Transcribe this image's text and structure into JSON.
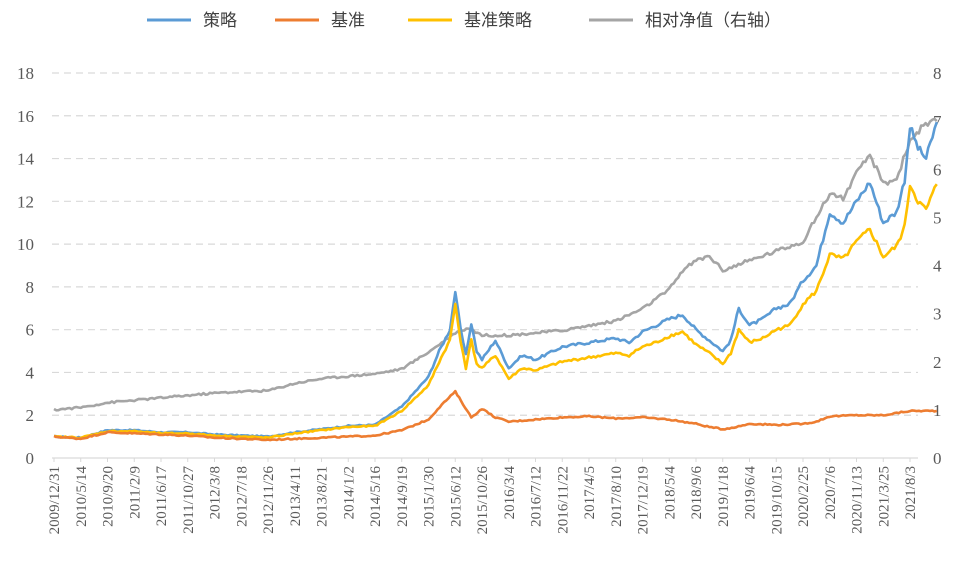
{
  "chart_data": {
    "type": "line",
    "legend": {
      "position": "top"
    },
    "grid": {
      "horizontal": true,
      "style": "dashed",
      "color": "#d9d9d9"
    },
    "x_tick_labels": [
      "2009/12/31",
      "2010/5/14",
      "2010/9/20",
      "2011/2/9",
      "2011/6/17",
      "2011/10/27",
      "2012/3/8",
      "2012/7/18",
      "2012/11/26",
      "2013/4/11",
      "2013/8/21",
      "2014/1/2",
      "2014/5/16",
      "2014/9/19",
      "2015/1/30",
      "2015/6/12",
      "2015/10/26",
      "2016/3/4",
      "2016/7/12",
      "2016/11/22",
      "2017/4/5",
      "2017/8/10",
      "2017/12/19",
      "2018/5/4",
      "2018/9/6",
      "2019/1/18",
      "2019/6/4",
      "2019/10/15",
      "2020/2/25",
      "2020/7/6",
      "2020/11/13",
      "2021/3/25",
      "2021/8/3"
    ],
    "y_left": {
      "min": 0,
      "max": 18,
      "step": 2,
      "ticks": [
        "0",
        "2",
        "4",
        "6",
        "8",
        "10",
        "12",
        "14",
        "16",
        "18"
      ]
    },
    "y_right": {
      "min": 0,
      "max": 8,
      "step": 1,
      "ticks": [
        "0",
        "1",
        "2",
        "3",
        "4",
        "5",
        "6",
        "7",
        "8"
      ]
    },
    "series": [
      {
        "name": "策略",
        "axis": "left",
        "color": "#5b9bd5",
        "points": [
          [
            0,
            1.0
          ],
          [
            1,
            0.95
          ],
          [
            2,
            1.3
          ],
          [
            3,
            1.3
          ],
          [
            4,
            1.2
          ],
          [
            5,
            1.2
          ],
          [
            6,
            1.1
          ],
          [
            7,
            1.05
          ],
          [
            8,
            1.0
          ],
          [
            9,
            1.2
          ],
          [
            10,
            1.35
          ],
          [
            11,
            1.5
          ],
          [
            12,
            1.55
          ],
          [
            13,
            2.4
          ],
          [
            14,
            3.8
          ],
          [
            14.4,
            5.0
          ],
          [
            14.8,
            6.0
          ],
          [
            15.0,
            7.8
          ],
          [
            15.2,
            6.0
          ],
          [
            15.4,
            4.8
          ],
          [
            15.6,
            6.3
          ],
          [
            15.8,
            5.0
          ],
          [
            16.0,
            4.6
          ],
          [
            16.5,
            5.5
          ],
          [
            17,
            4.2
          ],
          [
            17.5,
            4.8
          ],
          [
            18,
            4.6
          ],
          [
            19,
            5.2
          ],
          [
            20,
            5.4
          ],
          [
            21,
            5.6
          ],
          [
            21.5,
            5.4
          ],
          [
            22,
            5.9
          ],
          [
            22.5,
            6.2
          ],
          [
            23,
            6.5
          ],
          [
            23.5,
            6.7
          ],
          [
            24,
            6.0
          ],
          [
            24.5,
            5.5
          ],
          [
            25,
            5.0
          ],
          [
            25.3,
            5.5
          ],
          [
            25.6,
            7.0
          ],
          [
            26,
            6.2
          ],
          [
            26.5,
            6.5
          ],
          [
            27,
            7.0
          ],
          [
            27.5,
            7.2
          ],
          [
            28,
            8.3
          ],
          [
            28.5,
            9.0
          ],
          [
            29,
            11.5
          ],
          [
            29.5,
            11.0
          ],
          [
            30,
            12.0
          ],
          [
            30.5,
            12.9
          ],
          [
            31,
            11.0
          ],
          [
            31.5,
            11.5
          ],
          [
            31.8,
            13.0
          ],
          [
            32,
            15.5
          ],
          [
            32.3,
            14.5
          ],
          [
            32.6,
            14.0
          ],
          [
            33,
            15.7
          ]
        ]
      },
      {
        "name": "基准",
        "axis": "left",
        "color": "#ed7d31",
        "points": [
          [
            0,
            1.0
          ],
          [
            1,
            0.9
          ],
          [
            2,
            1.2
          ],
          [
            3,
            1.15
          ],
          [
            4,
            1.1
          ],
          [
            5,
            1.05
          ],
          [
            6,
            0.95
          ],
          [
            7,
            0.9
          ],
          [
            8,
            0.85
          ],
          [
            9,
            0.9
          ],
          [
            10,
            0.95
          ],
          [
            11,
            1.0
          ],
          [
            12,
            1.05
          ],
          [
            13,
            1.3
          ],
          [
            14,
            1.8
          ],
          [
            14.5,
            2.5
          ],
          [
            15.0,
            3.1
          ],
          [
            15.3,
            2.5
          ],
          [
            15.6,
            1.9
          ],
          [
            16.0,
            2.3
          ],
          [
            16.5,
            1.9
          ],
          [
            17,
            1.7
          ],
          [
            18,
            1.8
          ],
          [
            19,
            1.9
          ],
          [
            20,
            1.95
          ],
          [
            21,
            1.85
          ],
          [
            22,
            1.9
          ],
          [
            23,
            1.8
          ],
          [
            23.5,
            1.7
          ],
          [
            24,
            1.6
          ],
          [
            24.5,
            1.45
          ],
          [
            25,
            1.35
          ],
          [
            25.5,
            1.45
          ],
          [
            26,
            1.6
          ],
          [
            27,
            1.55
          ],
          [
            28,
            1.6
          ],
          [
            28.5,
            1.7
          ],
          [
            29,
            1.95
          ],
          [
            30,
            2.0
          ],
          [
            31,
            2.0
          ],
          [
            32,
            2.2
          ],
          [
            33,
            2.2
          ]
        ]
      },
      {
        "name": "基准策略",
        "axis": "left",
        "color": "#ffc000",
        "points": [
          [
            0,
            1.0
          ],
          [
            1,
            0.95
          ],
          [
            2,
            1.25
          ],
          [
            3,
            1.25
          ],
          [
            4,
            1.15
          ],
          [
            5,
            1.15
          ],
          [
            6,
            1.05
          ],
          [
            7,
            1.0
          ],
          [
            8,
            0.95
          ],
          [
            9,
            1.15
          ],
          [
            10,
            1.3
          ],
          [
            11,
            1.45
          ],
          [
            12,
            1.5
          ],
          [
            13,
            2.2
          ],
          [
            14,
            3.4
          ],
          [
            14.4,
            4.5
          ],
          [
            14.8,
            5.5
          ],
          [
            15.0,
            7.2
          ],
          [
            15.2,
            5.5
          ],
          [
            15.4,
            4.2
          ],
          [
            15.6,
            5.5
          ],
          [
            15.8,
            4.4
          ],
          [
            16.0,
            4.2
          ],
          [
            16.5,
            4.8
          ],
          [
            17,
            3.7
          ],
          [
            17.5,
            4.2
          ],
          [
            18,
            4.1
          ],
          [
            19,
            4.5
          ],
          [
            20,
            4.7
          ],
          [
            21,
            4.9
          ],
          [
            21.5,
            4.8
          ],
          [
            22,
            5.2
          ],
          [
            22.5,
            5.4
          ],
          [
            23,
            5.7
          ],
          [
            23.5,
            5.9
          ],
          [
            24,
            5.3
          ],
          [
            24.5,
            4.9
          ],
          [
            25,
            4.4
          ],
          [
            25.3,
            4.9
          ],
          [
            25.6,
            6.0
          ],
          [
            26,
            5.4
          ],
          [
            26.5,
            5.6
          ],
          [
            27,
            6.0
          ],
          [
            27.5,
            6.2
          ],
          [
            28,
            7.2
          ],
          [
            28.5,
            7.8
          ],
          [
            29,
            9.5
          ],
          [
            29.5,
            9.3
          ],
          [
            30,
            10.1
          ],
          [
            30.5,
            10.7
          ],
          [
            31,
            9.4
          ],
          [
            31.5,
            9.9
          ],
          [
            31.8,
            10.8
          ],
          [
            32,
            12.8
          ],
          [
            32.3,
            12.0
          ],
          [
            32.6,
            11.6
          ],
          [
            33,
            12.8
          ]
        ]
      },
      {
        "name": "相对净值（右轴）",
        "axis": "right",
        "color": "#a5a5a5",
        "points": [
          [
            0,
            1.0
          ],
          [
            1,
            1.05
          ],
          [
            2,
            1.15
          ],
          [
            3,
            1.2
          ],
          [
            4,
            1.25
          ],
          [
            5,
            1.3
          ],
          [
            6,
            1.35
          ],
          [
            7,
            1.38
          ],
          [
            8,
            1.4
          ],
          [
            9,
            1.55
          ],
          [
            10,
            1.65
          ],
          [
            11,
            1.7
          ],
          [
            12,
            1.75
          ],
          [
            13,
            1.85
          ],
          [
            14,
            2.2
          ],
          [
            14.5,
            2.4
          ],
          [
            15.0,
            2.6
          ],
          [
            15.5,
            2.7
          ],
          [
            16,
            2.55
          ],
          [
            17,
            2.55
          ],
          [
            18,
            2.6
          ],
          [
            19,
            2.65
          ],
          [
            20,
            2.75
          ],
          [
            21,
            2.85
          ],
          [
            22,
            3.1
          ],
          [
            23,
            3.5
          ],
          [
            23.5,
            3.9
          ],
          [
            24,
            4.1
          ],
          [
            24.5,
            4.2
          ],
          [
            25,
            3.9
          ],
          [
            25.5,
            4.0
          ],
          [
            26,
            4.1
          ],
          [
            27,
            4.3
          ],
          [
            28,
            4.5
          ],
          [
            28.5,
            5.0
          ],
          [
            29,
            5.5
          ],
          [
            29.5,
            5.4
          ],
          [
            30,
            5.9
          ],
          [
            30.5,
            6.3
          ],
          [
            31,
            5.7
          ],
          [
            31.5,
            5.8
          ],
          [
            32,
            6.6
          ],
          [
            32.5,
            6.9
          ],
          [
            33,
            7.0
          ]
        ]
      }
    ]
  }
}
